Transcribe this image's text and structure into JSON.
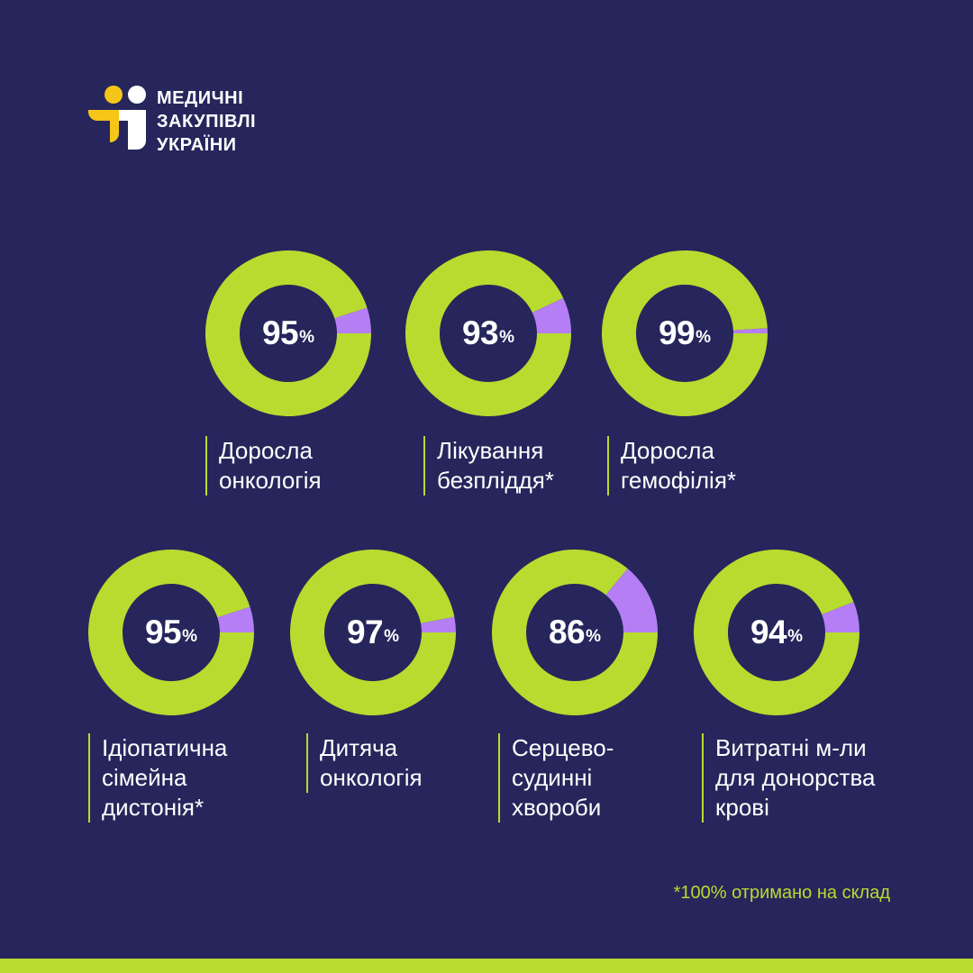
{
  "logo": {
    "lines": [
      "МЕДИЧНІ",
      "ЗАКУПІВЛІ",
      "УКРАЇНИ"
    ]
  },
  "colors": {
    "background": "#26265c",
    "received": "#b8db2f",
    "remaining": "#b57ef5",
    "text": "#ffffff",
    "logo_yellow": "#f5c518",
    "logo_white": "#ffffff"
  },
  "chart_data": {
    "type": "pie",
    "unit": "%",
    "items": [
      {
        "value": 95,
        "label_lines": [
          "Доросла",
          "онкологія"
        ]
      },
      {
        "value": 93,
        "label_lines": [
          "Лікування",
          "безпліддя*"
        ]
      },
      {
        "value": 99,
        "label_lines": [
          "Доросла",
          "гемофілія*"
        ]
      },
      {
        "value": 95,
        "label_lines": [
          "Ідіопатична",
          "сімейна",
          "дистонія*"
        ]
      },
      {
        "value": 97,
        "label_lines": [
          "Дитяча",
          "онкологія"
        ]
      },
      {
        "value": 86,
        "label_lines": [
          "Серцево-",
          "судинні",
          "хвороби"
        ]
      },
      {
        "value": 94,
        "label_lines": [
          "Витратні м-ли",
          "для донорства",
          "крові"
        ]
      }
    ]
  },
  "footnote": "*100% отримано на склад"
}
